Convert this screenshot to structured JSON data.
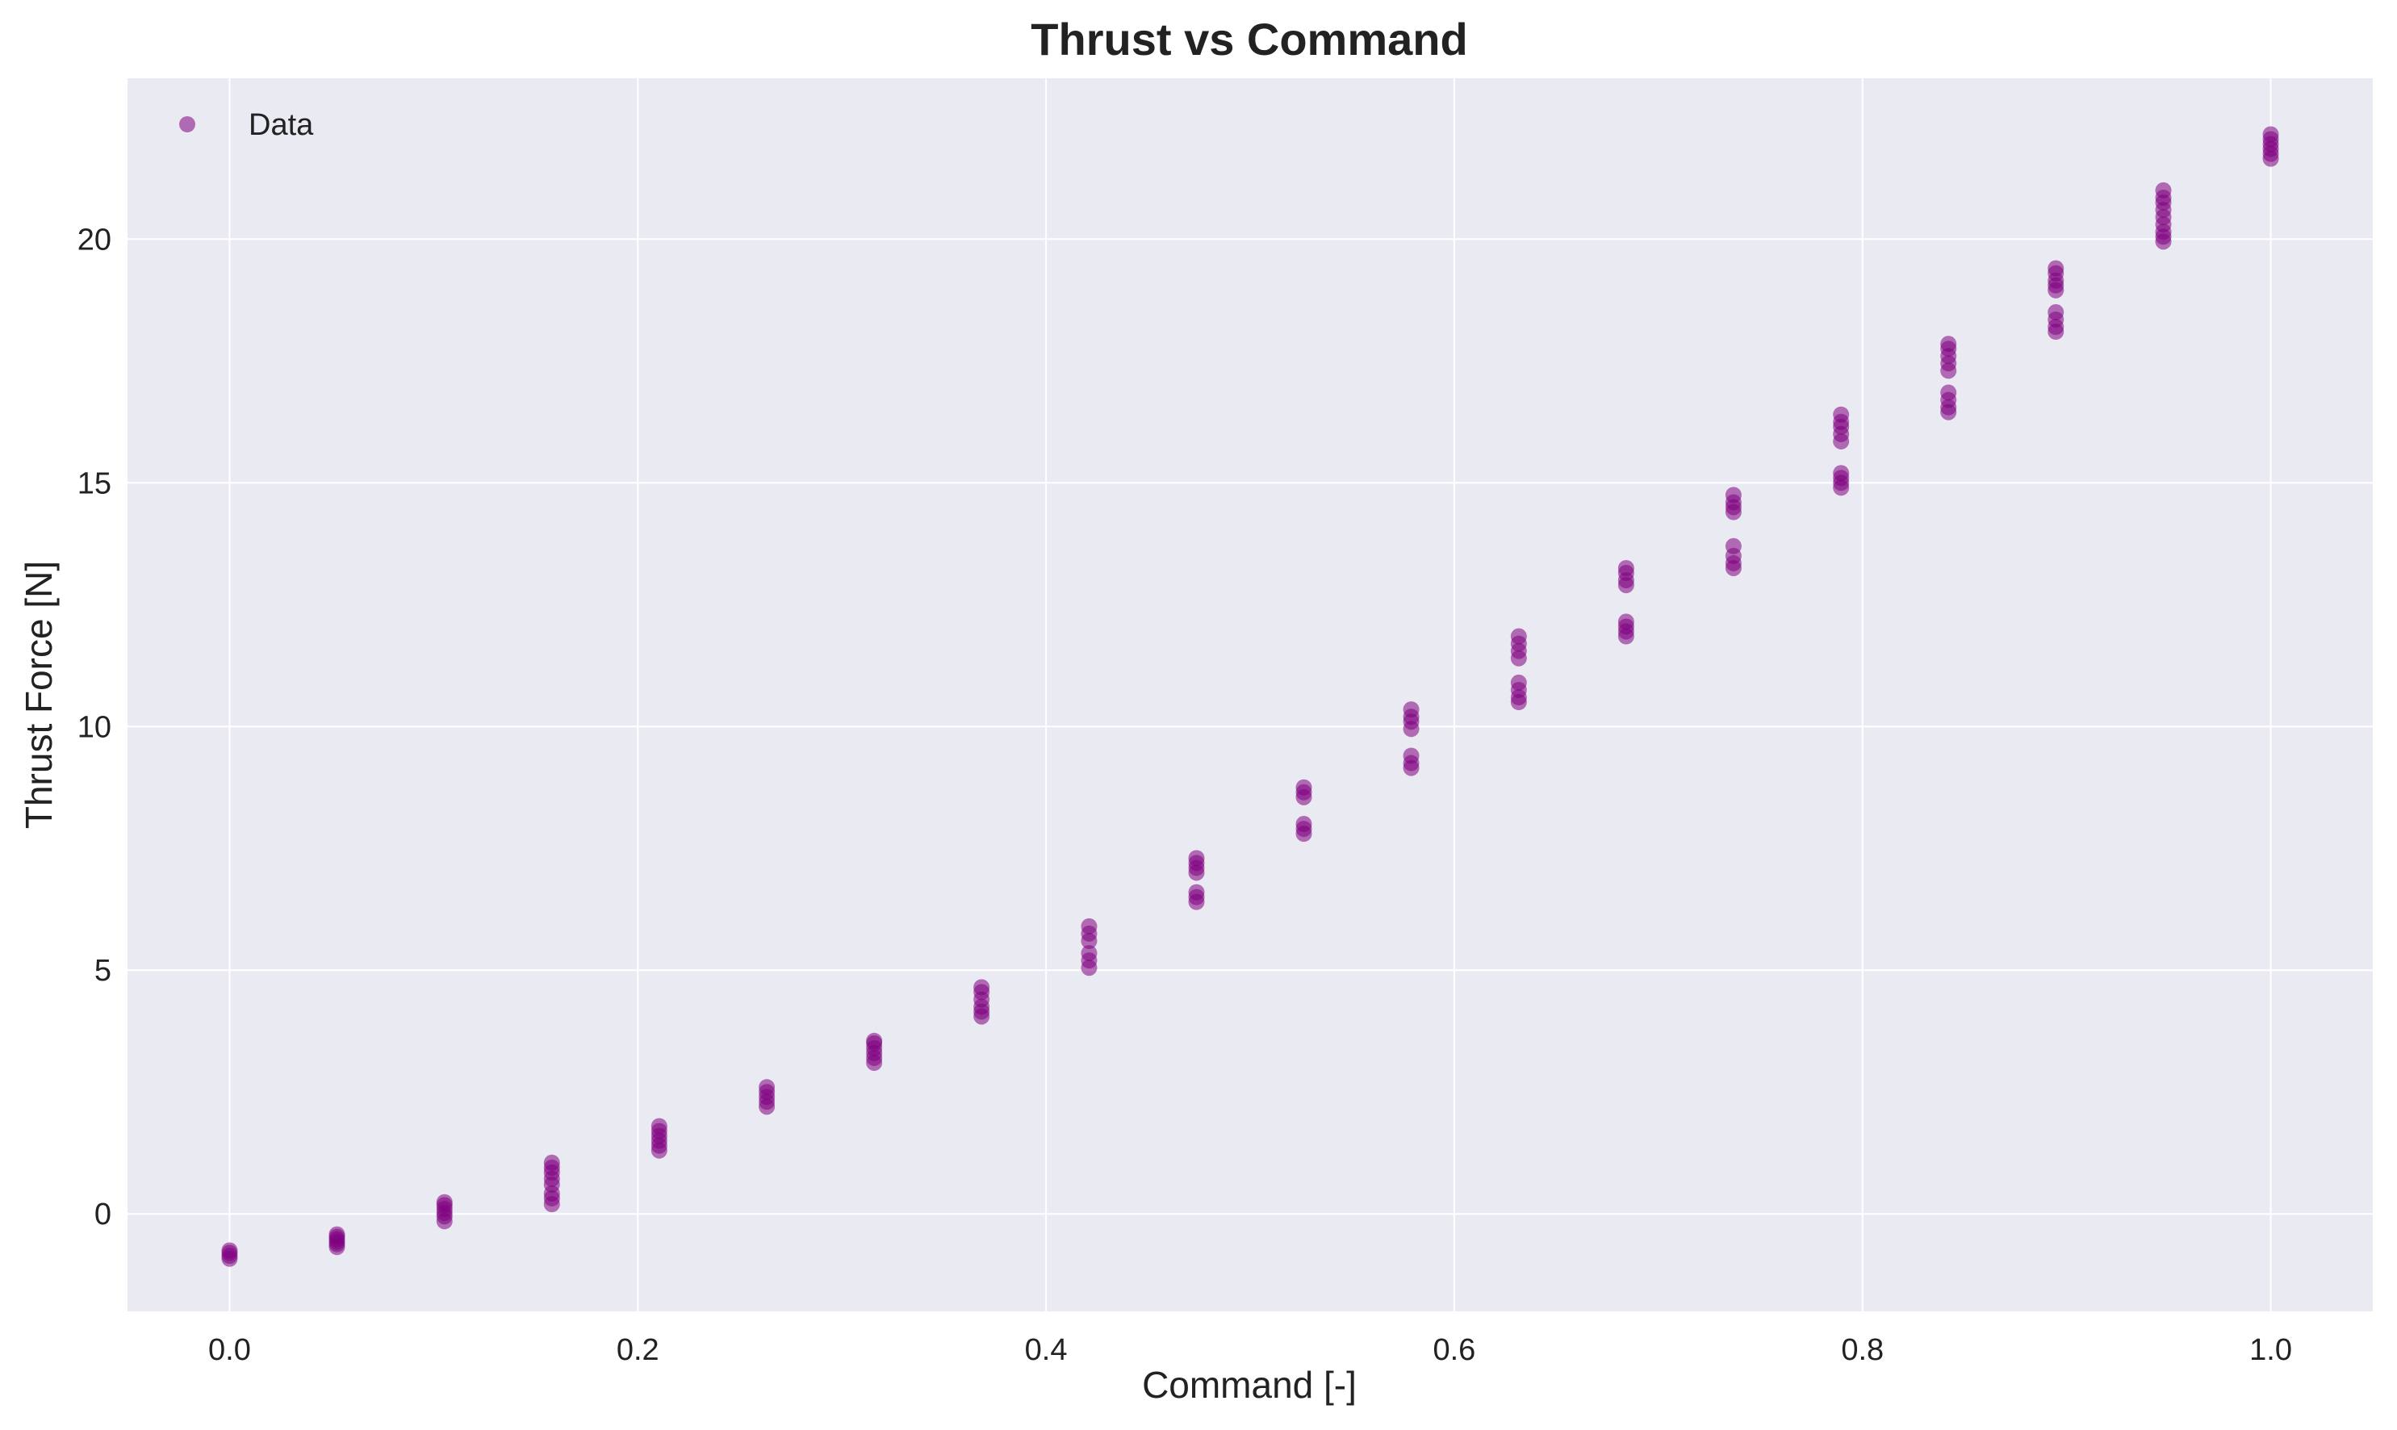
{
  "chart_data": {
    "type": "scatter",
    "title": "Thrust vs Command",
    "xlabel": "Command [-]",
    "ylabel": "Thrust Force [N]",
    "xlim": [
      -0.05,
      1.05
    ],
    "ylim": [
      -2.0,
      23.3
    ],
    "xticks": [
      0.0,
      0.2,
      0.4,
      0.6,
      0.8,
      1.0
    ],
    "xtick_labels": [
      "0.0",
      "0.2",
      "0.4",
      "0.6",
      "0.8",
      "1.0"
    ],
    "yticks": [
      0,
      5,
      10,
      15,
      20
    ],
    "ytick_labels": [
      "0",
      "5",
      "10",
      "15",
      "20"
    ],
    "grid": true,
    "legend": {
      "position": "top-left",
      "entries": [
        "Data"
      ]
    },
    "colors": {
      "plot_bg": "#eaeaf2",
      "grid": "#ffffff",
      "marker": "#800080"
    },
    "series": [
      {
        "name": "Data",
        "points": [
          [
            0.0,
            -0.92
          ],
          [
            0.0,
            -0.86
          ],
          [
            0.0,
            -0.8
          ],
          [
            0.0,
            -0.75
          ],
          [
            0.0526,
            -0.68
          ],
          [
            0.0526,
            -0.62
          ],
          [
            0.0526,
            -0.57
          ],
          [
            0.0526,
            -0.52
          ],
          [
            0.0526,
            -0.47
          ],
          [
            0.0526,
            -0.42
          ],
          [
            0.1053,
            -0.15
          ],
          [
            0.1053,
            -0.05
          ],
          [
            0.1053,
            0.02
          ],
          [
            0.1053,
            0.1
          ],
          [
            0.1053,
            0.18
          ],
          [
            0.1053,
            0.24
          ],
          [
            0.1579,
            0.2
          ],
          [
            0.1579,
            0.32
          ],
          [
            0.1579,
            0.42
          ],
          [
            0.1579,
            0.6
          ],
          [
            0.1579,
            0.72
          ],
          [
            0.1579,
            0.85
          ],
          [
            0.1579,
            0.95
          ],
          [
            0.1579,
            1.05
          ],
          [
            0.2105,
            1.3
          ],
          [
            0.2105,
            1.4
          ],
          [
            0.2105,
            1.5
          ],
          [
            0.2105,
            1.6
          ],
          [
            0.2105,
            1.7
          ],
          [
            0.2105,
            1.8
          ],
          [
            0.2632,
            2.2
          ],
          [
            0.2632,
            2.3
          ],
          [
            0.2632,
            2.4
          ],
          [
            0.2632,
            2.5
          ],
          [
            0.2632,
            2.6
          ],
          [
            0.3158,
            3.1
          ],
          [
            0.3158,
            3.2
          ],
          [
            0.3158,
            3.3
          ],
          [
            0.3158,
            3.4
          ],
          [
            0.3158,
            3.5
          ],
          [
            0.3158,
            3.55
          ],
          [
            0.3684,
            4.05
          ],
          [
            0.3684,
            4.15
          ],
          [
            0.3684,
            4.25
          ],
          [
            0.3684,
            4.4
          ],
          [
            0.3684,
            4.55
          ],
          [
            0.3684,
            4.65
          ],
          [
            0.4211,
            5.05
          ],
          [
            0.4211,
            5.2
          ],
          [
            0.4211,
            5.35
          ],
          [
            0.4211,
            5.6
          ],
          [
            0.4211,
            5.75
          ],
          [
            0.4211,
            5.9
          ],
          [
            0.4737,
            6.4
          ],
          [
            0.4737,
            6.5
          ],
          [
            0.4737,
            6.6
          ],
          [
            0.4737,
            7.0
          ],
          [
            0.4737,
            7.1
          ],
          [
            0.4737,
            7.2
          ],
          [
            0.4737,
            7.3
          ],
          [
            0.5263,
            7.8
          ],
          [
            0.5263,
            7.9
          ],
          [
            0.5263,
            8.0
          ],
          [
            0.5263,
            8.55
          ],
          [
            0.5263,
            8.65
          ],
          [
            0.5263,
            8.75
          ],
          [
            0.5789,
            9.15
          ],
          [
            0.5789,
            9.25
          ],
          [
            0.5789,
            9.4
          ],
          [
            0.5789,
            9.95
          ],
          [
            0.5789,
            10.1
          ],
          [
            0.5789,
            10.2
          ],
          [
            0.5789,
            10.35
          ],
          [
            0.6316,
            10.5
          ],
          [
            0.6316,
            10.6
          ],
          [
            0.6316,
            10.75
          ],
          [
            0.6316,
            10.9
          ],
          [
            0.6316,
            11.4
          ],
          [
            0.6316,
            11.55
          ],
          [
            0.6316,
            11.7
          ],
          [
            0.6316,
            11.85
          ],
          [
            0.6842,
            11.85
          ],
          [
            0.6842,
            11.95
          ],
          [
            0.6842,
            12.05
          ],
          [
            0.6842,
            12.15
          ],
          [
            0.6842,
            12.9
          ],
          [
            0.6842,
            13.0
          ],
          [
            0.6842,
            13.15
          ],
          [
            0.6842,
            13.25
          ],
          [
            0.7368,
            13.25
          ],
          [
            0.7368,
            13.35
          ],
          [
            0.7368,
            13.5
          ],
          [
            0.7368,
            13.7
          ],
          [
            0.7368,
            14.4
          ],
          [
            0.7368,
            14.5
          ],
          [
            0.7368,
            14.6
          ],
          [
            0.7368,
            14.75
          ],
          [
            0.7895,
            14.9
          ],
          [
            0.7895,
            15.0
          ],
          [
            0.7895,
            15.1
          ],
          [
            0.7895,
            15.2
          ],
          [
            0.7895,
            15.85
          ],
          [
            0.7895,
            16.0
          ],
          [
            0.7895,
            16.15
          ],
          [
            0.7895,
            16.25
          ],
          [
            0.7895,
            16.4
          ],
          [
            0.8421,
            16.45
          ],
          [
            0.8421,
            16.55
          ],
          [
            0.8421,
            16.7
          ],
          [
            0.8421,
            16.85
          ],
          [
            0.8421,
            17.3
          ],
          [
            0.8421,
            17.45
          ],
          [
            0.8421,
            17.6
          ],
          [
            0.8421,
            17.75
          ],
          [
            0.8421,
            17.85
          ],
          [
            0.8947,
            18.1
          ],
          [
            0.8947,
            18.2
          ],
          [
            0.8947,
            18.35
          ],
          [
            0.8947,
            18.5
          ],
          [
            0.8947,
            18.95
          ],
          [
            0.8947,
            19.05
          ],
          [
            0.8947,
            19.15
          ],
          [
            0.8947,
            19.3
          ],
          [
            0.8947,
            19.4
          ],
          [
            0.9474,
            19.95
          ],
          [
            0.9474,
            20.05
          ],
          [
            0.9474,
            20.15
          ],
          [
            0.9474,
            20.3
          ],
          [
            0.9474,
            20.45
          ],
          [
            0.9474,
            20.6
          ],
          [
            0.9474,
            20.75
          ],
          [
            0.9474,
            20.85
          ],
          [
            0.9474,
            21.0
          ],
          [
            1.0,
            21.65
          ],
          [
            1.0,
            21.75
          ],
          [
            1.0,
            21.85
          ],
          [
            1.0,
            21.95
          ],
          [
            1.0,
            22.05
          ],
          [
            1.0,
            22.15
          ]
        ]
      }
    ]
  }
}
